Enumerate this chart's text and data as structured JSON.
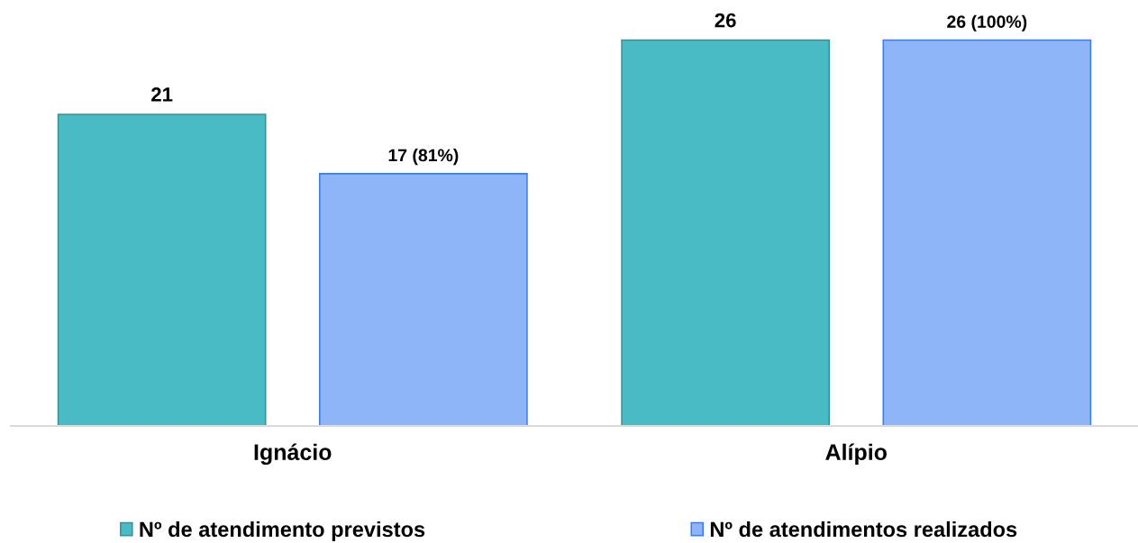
{
  "chart_data": {
    "type": "bar",
    "categories": [
      "Ignácio",
      "Alípio"
    ],
    "series": [
      {
        "name": "Nº de atendimento previstos",
        "color": "#48bbc5",
        "values": [
          21,
          26
        ],
        "value_labels": [
          "21",
          "26"
        ]
      },
      {
        "name": "Nº de atendimentos realizados",
        "color": "#8fb5f9",
        "values": [
          17,
          26
        ],
        "value_labels": [
          "17 (81%)",
          "26 (100%)"
        ]
      }
    ],
    "legend": "bottom"
  }
}
